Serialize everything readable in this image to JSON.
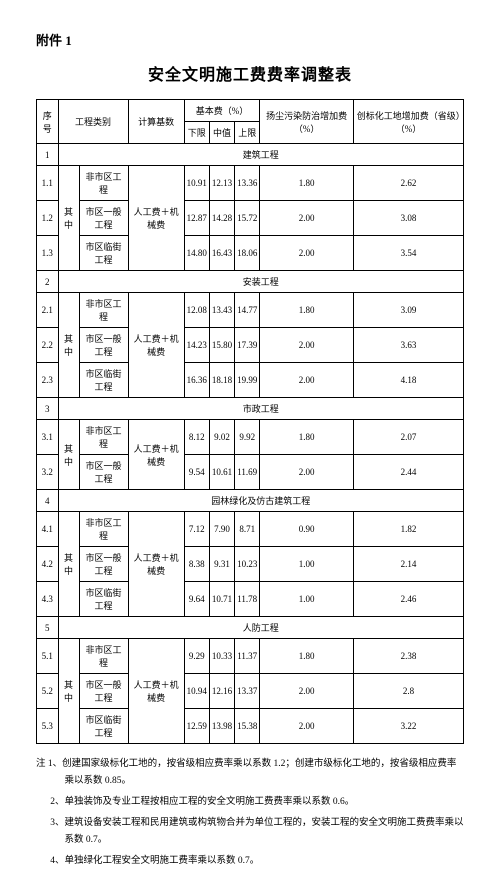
{
  "attachment": "附件 1",
  "title": "安全文明施工费费率调整表",
  "headers": {
    "col1": "序号",
    "col2": "工程类别",
    "col3": "计算基数",
    "col4": "基本费（%）",
    "col4a": "下限",
    "col4b": "中值",
    "col4c": "上限",
    "col5": "扬尘污染防治增加费（%）",
    "col6": "创标化工地增加费（省级）（%）"
  },
  "basis": "人工费＋机械费",
  "qizhong": "其中",
  "sections": {
    "s1": {
      "num": "1",
      "name": "建筑工程"
    },
    "s2": {
      "num": "2",
      "name": "安装工程"
    },
    "s3": {
      "num": "3",
      "name": "市政工程"
    },
    "s4": {
      "num": "4",
      "name": "园林绿化及仿古建筑工程"
    },
    "s5": {
      "num": "5",
      "name": "人防工程"
    }
  },
  "subcat": {
    "a": "非市区工程",
    "b": "市区一般工程",
    "c": "市区临街工程"
  },
  "rows": {
    "r11": {
      "num": "1.1",
      "lo": "10.91",
      "mid": "12.13",
      "hi": "13.36",
      "dust": "1.80",
      "std": "2.62"
    },
    "r12": {
      "num": "1.2",
      "lo": "12.87",
      "mid": "14.28",
      "hi": "15.72",
      "dust": "2.00",
      "std": "3.08"
    },
    "r13": {
      "num": "1.3",
      "lo": "14.80",
      "mid": "16.43",
      "hi": "18.06",
      "dust": "2.00",
      "std": "3.54"
    },
    "r21": {
      "num": "2.1",
      "lo": "12.08",
      "mid": "13.43",
      "hi": "14.77",
      "dust": "1.80",
      "std": "3.09"
    },
    "r22": {
      "num": "2.2",
      "lo": "14.23",
      "mid": "15.80",
      "hi": "17.39",
      "dust": "2.00",
      "std": "3.63"
    },
    "r23": {
      "num": "2.3",
      "lo": "16.36",
      "mid": "18.18",
      "hi": "19.99",
      "dust": "2.00",
      "std": "4.18"
    },
    "r31": {
      "num": "3.1",
      "lo": "8.12",
      "mid": "9.02",
      "hi": "9.92",
      "dust": "1.80",
      "std": "2.07"
    },
    "r32": {
      "num": "3.2",
      "lo": "9.54",
      "mid": "10.61",
      "hi": "11.69",
      "dust": "2.00",
      "std": "2.44"
    },
    "r41": {
      "num": "4.1",
      "lo": "7.12",
      "mid": "7.90",
      "hi": "8.71",
      "dust": "0.90",
      "std": "1.82"
    },
    "r42": {
      "num": "4.2",
      "lo": "8.38",
      "mid": "9.31",
      "hi": "10.23",
      "dust": "1.00",
      "std": "2.14"
    },
    "r43": {
      "num": "4.3",
      "lo": "9.64",
      "mid": "10.71",
      "hi": "11.78",
      "dust": "1.00",
      "std": "2.46"
    },
    "r51": {
      "num": "5.1",
      "lo": "9.29",
      "mid": "10.33",
      "hi": "11.37",
      "dust": "1.80",
      "std": "2.38"
    },
    "r52": {
      "num": "5.2",
      "lo": "10.94",
      "mid": "12.16",
      "hi": "13.37",
      "dust": "2.00",
      "std": "2.8"
    },
    "r53": {
      "num": "5.3",
      "lo": "12.59",
      "mid": "13.98",
      "hi": "15.38",
      "dust": "2.00",
      "std": "3.22"
    }
  },
  "notes": {
    "n1": "注 1、创建国家级标化工地的，按省级相应费率乘以系数 1.2；创建市级标化工地的，按省级相应费率乘以系数 0.85。",
    "n2": "2、单独装饰及专业工程按相应工程的安全文明施工费费率乘以系数 0.6。",
    "n3": "3、建筑设备安装工程和民用建筑或构筑物合并为单位工程的，安装工程的安全文明施工费费率乘以系数 0.7。",
    "n4": "4、单独绿化工程安全文明施工费率乘以系数 0.7。"
  }
}
